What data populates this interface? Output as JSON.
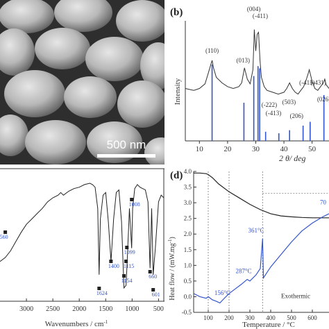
{
  "panels": {
    "a": {
      "scale_bar_label": "500 nm"
    },
    "b": {
      "label": "(b)",
      "ylabel": "Intensity",
      "xlabel": "2 θ/ deg",
      "x_ticks": [
        "10",
        "20",
        "30",
        "40",
        "50"
      ],
      "peak_labels": [
        "(110)",
        "(013)",
        "(004)",
        "(-411)",
        "(-222)",
        "(-413)",
        "(503)",
        "(206)",
        "(-415)",
        "(-431)",
        "(026)"
      ]
    },
    "c": {
      "xlabel": "Wavenumbers / cm",
      "xlabel_sup": "-1",
      "x_ticks": [
        "3000",
        "2500",
        "2000",
        "1500",
        "1000",
        "500"
      ],
      "peak_labels": [
        "560",
        "1624",
        "1400",
        "1008",
        "1099",
        "1115",
        "1154",
        "660",
        "601"
      ]
    },
    "d": {
      "label": "(d)",
      "ylabel": "Heat flow / (mW.mg",
      "ylabel_sup": "-1",
      "ylabel_end": ")",
      "xlabel": "Temperature / °C",
      "y_ticks": [
        "4.0",
        "3.5",
        "3.0",
        "2.5",
        "2.0",
        "1.5",
        "1.0",
        "0.5",
        "0.0",
        "-0.5"
      ],
      "x_ticks": [
        "100",
        "200",
        "300",
        "400",
        "500",
        "600"
      ],
      "annotations": [
        "361°C",
        "287°C",
        "156°C",
        "70",
        "Exothermic"
      ]
    }
  },
  "chart_data": [
    {
      "type": "line",
      "title": "",
      "xlabel": "2 θ/ deg",
      "ylabel": "Intensity",
      "xlim": [
        5,
        56
      ],
      "series": [
        {
          "x": [
            5,
            8,
            10,
            12,
            13,
            14,
            14.5,
            15,
            16,
            18,
            20,
            22,
            24,
            25,
            26,
            27,
            28,
            29,
            29.5,
            30,
            30.5,
            31,
            31.5,
            32,
            33,
            34,
            36,
            38,
            40,
            41,
            42,
            43,
            44,
            45,
            46,
            47,
            48,
            48.5,
            49,
            50,
            51,
            52,
            53,
            54,
            54.5,
            55,
            56
          ],
          "y": [
            0.3,
            0.28,
            0.3,
            0.35,
            0.45,
            0.55,
            0.6,
            0.52,
            0.42,
            0.36,
            0.32,
            0.3,
            0.32,
            0.36,
            0.52,
            0.4,
            0.35,
            0.5,
            0.93,
            0.7,
            0.88,
            0.9,
            0.6,
            0.42,
            0.32,
            0.28,
            0.26,
            0.24,
            0.26,
            0.3,
            0.36,
            0.3,
            0.26,
            0.24,
            0.28,
            0.32,
            0.4,
            0.45,
            0.5,
            0.38,
            0.3,
            0.28,
            0.32,
            0.36,
            0.4,
            0.34,
            0.3
          ]
        }
      ],
      "reference_sticks": {
        "x": [
          14.5,
          25.8,
          29.3,
          30.8,
          31.4,
          33.5,
          38.2,
          42.0,
          46.8,
          49.3,
          54.2
        ],
        "height": [
          1.0,
          0.5,
          0.85,
          0.98,
          0.95,
          0.12,
          0.1,
          0.14,
          0.2,
          0.25,
          0.6
        ]
      }
    },
    {
      "type": "line",
      "title": "",
      "xlabel": "Wavenumbers / cm-1",
      "ylabel": "",
      "xlim": [
        3500,
        400
      ],
      "series": [
        {
          "x": [
            3500,
            3400,
            3300,
            3200,
            3100,
            3000,
            2900,
            2800,
            2700,
            2600,
            2500,
            2400,
            2350,
            2300,
            2200,
            2100,
            2000,
            1900,
            1800,
            1750,
            1700,
            1650,
            1624,
            1600,
            1550,
            1500,
            1450,
            1400,
            1350,
            1300,
            1250,
            1200,
            1154,
            1115,
            1099,
            1050,
            1008,
            990,
            950,
            900,
            850,
            800,
            750,
            700,
            660,
            630,
            601,
            560,
            500,
            450,
            400
          ],
          "y": [
            30,
            33,
            38,
            45,
            52,
            58,
            62,
            66,
            70,
            75,
            78,
            80,
            82,
            80,
            83,
            85,
            86,
            88,
            89,
            88,
            86,
            70,
            20,
            62,
            80,
            82,
            60,
            30,
            62,
            82,
            84,
            60,
            10,
            12,
            25,
            70,
            40,
            70,
            85,
            88,
            86,
            85,
            84,
            75,
            25,
            70,
            20,
            40,
            75,
            80,
            78
          ]
        }
      ]
    },
    {
      "type": "line",
      "title": "",
      "xlabel": "Temperature / °C",
      "ylabel": "Heat flow / (mW.mg-1)",
      "xlim": [
        30,
        680
      ],
      "ylim": [
        -0.5,
        4.0
      ],
      "series": [
        {
          "x": [
            30,
            60,
            90,
            100,
            120,
            140,
            156,
            170,
            200,
            230,
            260,
            287,
            300,
            330,
            350,
            361,
            365,
            380,
            400,
            450,
            500,
            550,
            600,
            650,
            680
          ],
          "y": [
            0.1,
            0.0,
            -0.05,
            0.0,
            -0.1,
            -0.15,
            -0.2,
            -0.1,
            0.1,
            0.25,
            0.4,
            0.55,
            0.5,
            0.7,
            0.9,
            1.85,
            0.6,
            0.75,
            0.95,
            1.35,
            1.75,
            2.1,
            2.35,
            2.55,
            2.65
          ]
        },
        {
          "x": [
            30,
            60,
            90,
            100,
            120,
            150,
            200,
            250,
            300,
            350,
            400,
            450,
            500,
            550,
            600,
            650,
            680
          ],
          "y": [
            3.95,
            3.95,
            3.93,
            3.9,
            3.8,
            3.6,
            3.35,
            3.15,
            2.95,
            2.78,
            2.65,
            2.58,
            2.55,
            2.53,
            2.52,
            2.52,
            2.52
          ]
        }
      ]
    }
  ]
}
